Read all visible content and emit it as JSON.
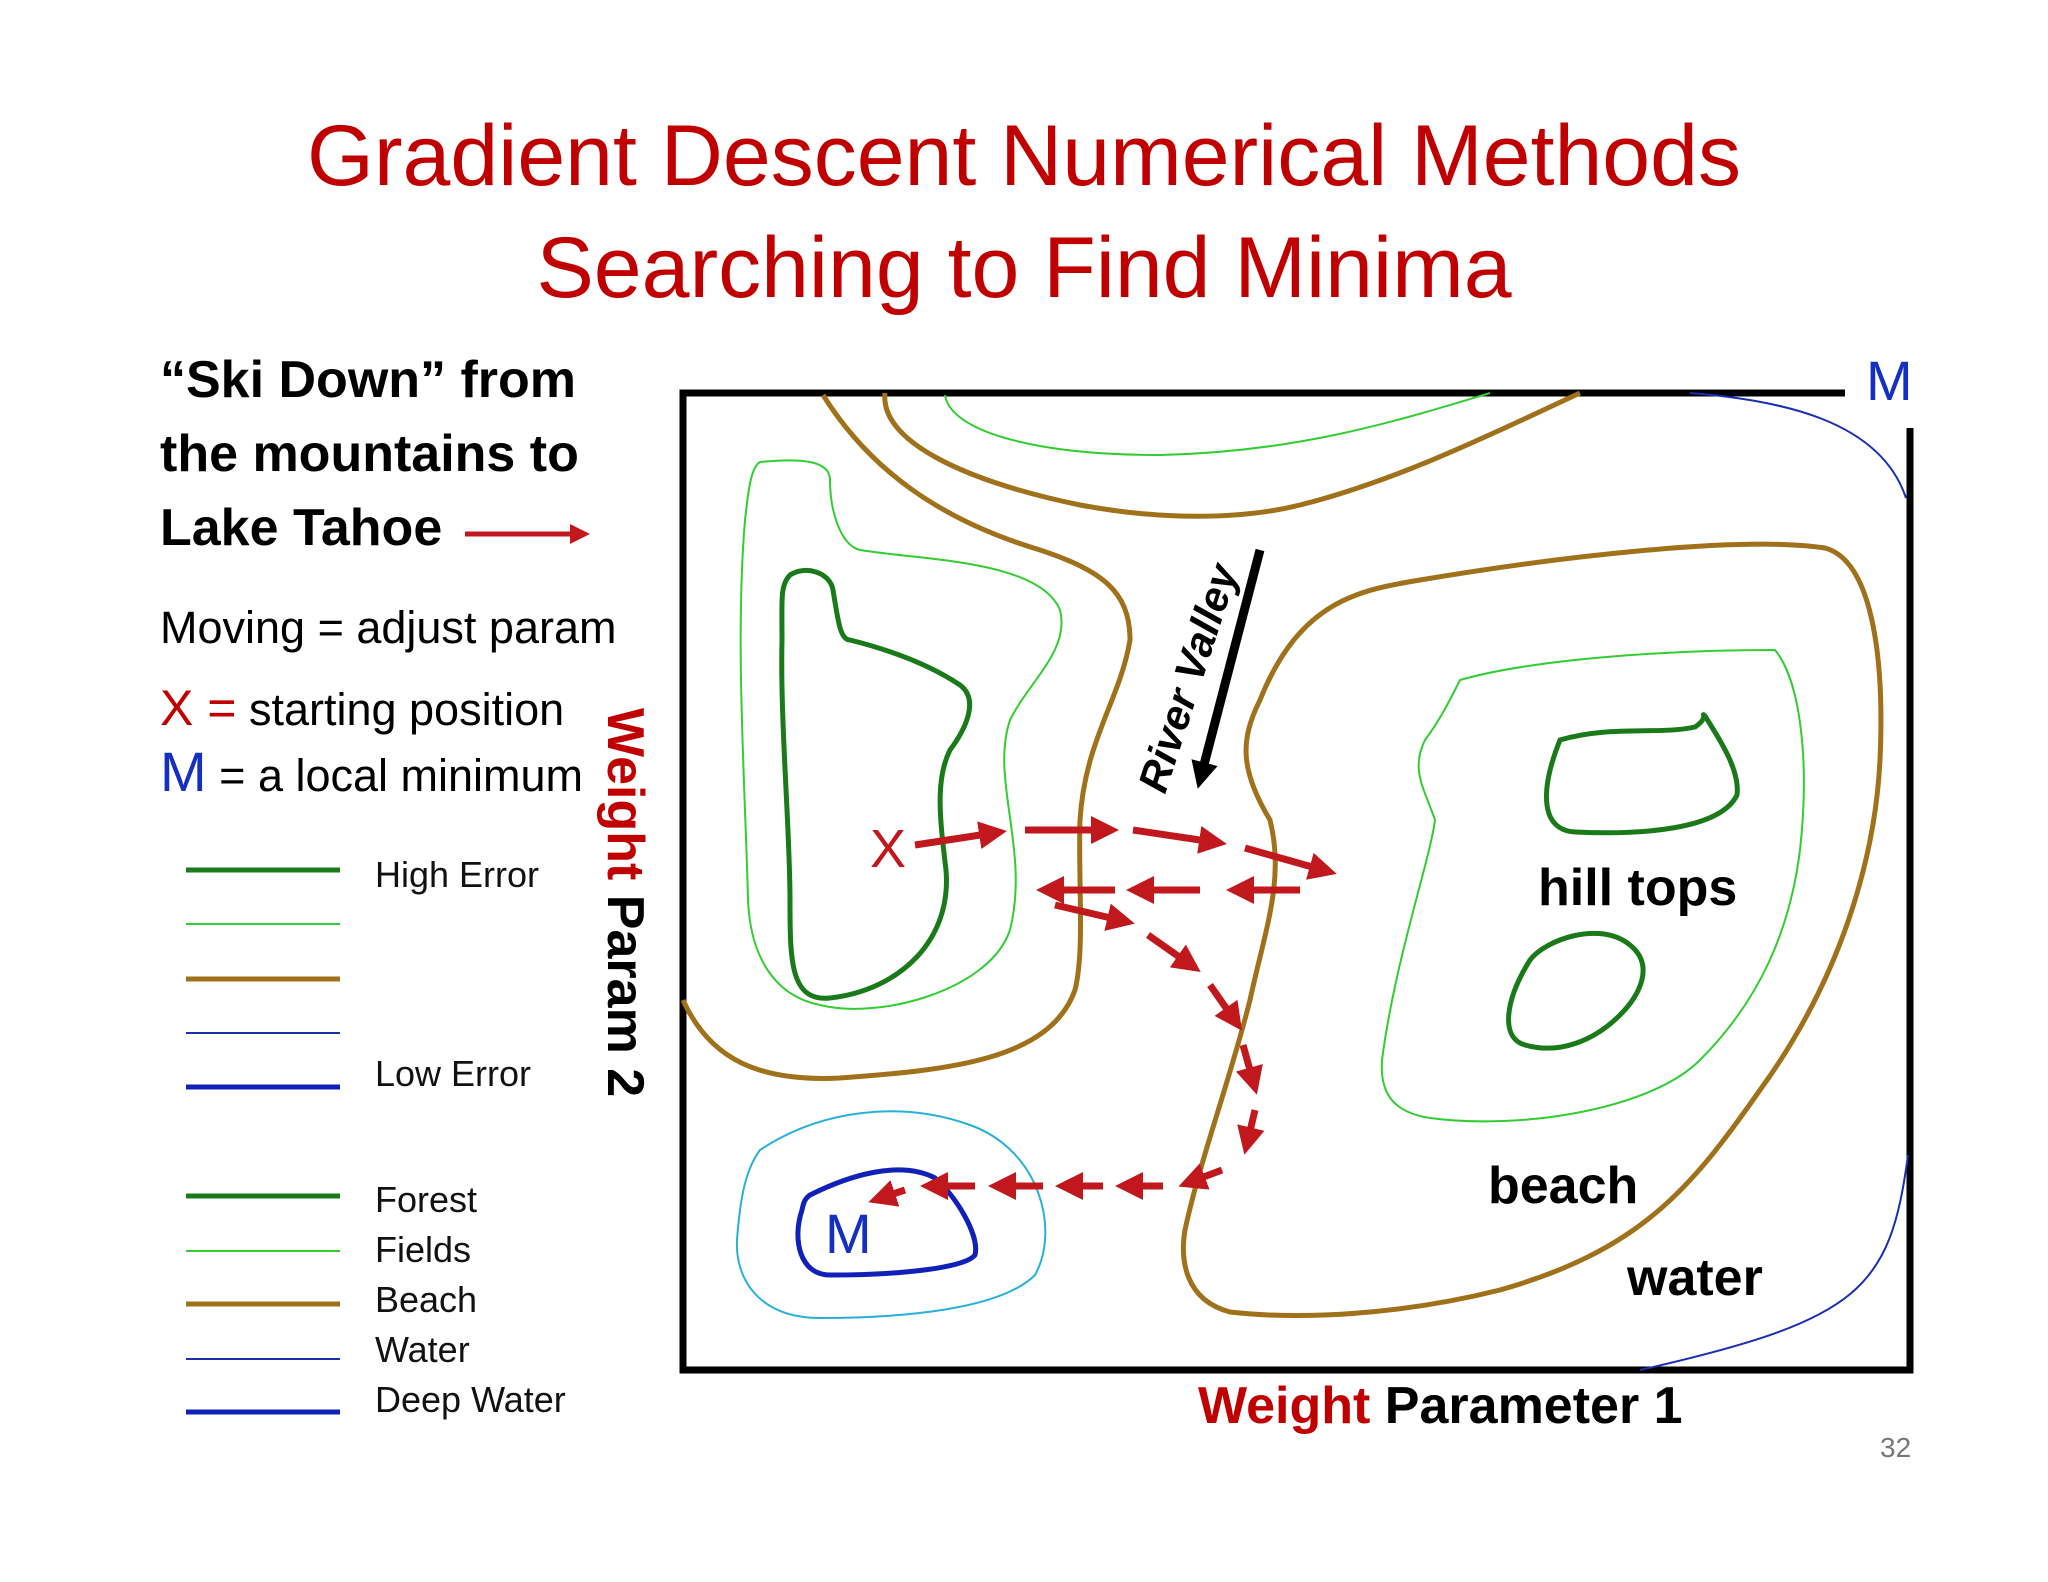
{
  "title": {
    "line1": "Gradient Descent Numerical Methods",
    "line2": "Searching to Find Minima"
  },
  "intro": {
    "line1": "“Ski Down” from",
    "line2": "the mountains to",
    "line3": "Lake Tahoe"
  },
  "notes": {
    "moving": "Moving = adjust param",
    "x_symbol": "X =",
    "x_desc": " starting position",
    "m_symbol": "M",
    "m_desc": " = a local minimum"
  },
  "legend_error": {
    "high": "High Error",
    "low": "Low Error"
  },
  "legend_terrain": [
    "Forest",
    "Fields",
    "Beach",
    "Water",
    "Deep Water"
  ],
  "map": {
    "x_marker": "X",
    "m_marker_inner": "M",
    "m_marker_corner": "M",
    "river_label": "River Valley",
    "hill_tops": "hill tops",
    "beach": "beach",
    "water": "water"
  },
  "axes": {
    "y_prefix": "Weight",
    "y_suffix": " Param 2",
    "x_prefix": "Weight",
    "x_suffix": " Parameter 1"
  },
  "page_number": "32",
  "colors": {
    "title_red": "#c00000",
    "forest": "#1a7a1a",
    "fields": "#33cc33",
    "beach": "#a0711b",
    "water": "#1a2fb0",
    "deep_water": "#1020b8",
    "lake_edge": "#29b0d8",
    "path_red": "#c0181c",
    "m_blue": "#1530c0"
  }
}
